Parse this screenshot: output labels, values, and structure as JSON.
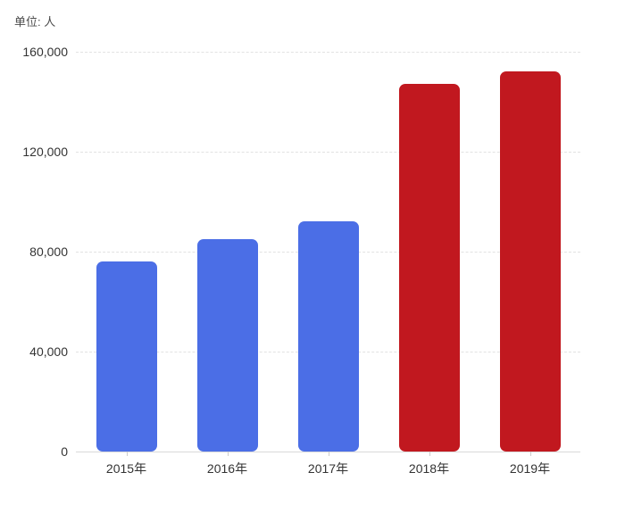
{
  "chart_data": {
    "type": "bar",
    "title": "",
    "unit_label": "单位: 人",
    "xlabel": "",
    "ylabel": "",
    "categories": [
      "2015年",
      "2016年",
      "2017年",
      "2018年",
      "2019年"
    ],
    "values": [
      76000,
      85000,
      92000,
      147000,
      152000
    ],
    "bar_colors": [
      "#4B6EE6",
      "#4B6EE6",
      "#4B6EE6",
      "#C1181F",
      "#C1181F"
    ],
    "ylim": [
      0,
      160000
    ],
    "ytick_interval": 40000,
    "yticks": [
      0,
      40000,
      80000,
      120000,
      160000
    ],
    "ytick_labels": [
      "0",
      "40,000",
      "80,000",
      "120,000",
      "160,000"
    ],
    "grid": "horizontal-dashed",
    "legend_position": "none"
  },
  "colors": {
    "bar_blue": "#4B6EE6",
    "bar_red": "#C1181F",
    "gridline": "#e2e2e2",
    "axis_line": "#d9d9d9",
    "tick_text": "#333333",
    "unit_text": "#4a4a4a",
    "background": "#ffffff"
  }
}
